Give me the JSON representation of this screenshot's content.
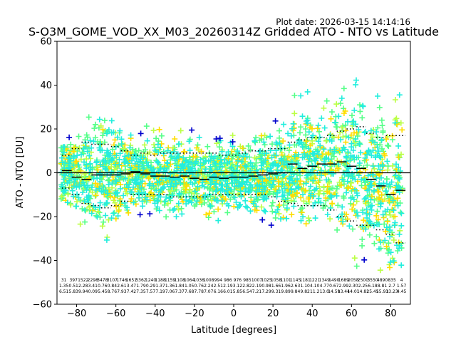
{
  "plot_date": "Plot date: 2026-03-15 14:14:16",
  "chart_data": {
    "type": "scatter",
    "title": "S-O3M_GOME_VOD_XX_M03_20260314Z Gridded ATO - NTO vs Latitude",
    "xlabel": "Latitude [degrees]",
    "ylabel": "ATO - NTO [DU]",
    "xlim": [
      -90,
      90
    ],
    "ylim": [
      -60,
      60
    ],
    "xticks": [
      -80,
      -60,
      -40,
      -20,
      0,
      20,
      40,
      60,
      80
    ],
    "yticks": [
      -60,
      -40,
      -20,
      0,
      20,
      40,
      60
    ],
    "colors": {
      "blue": "#0000cc",
      "cyan": "#22eedd",
      "green": "#55ff88",
      "yellow": "#ffdd00",
      "lime": "#bbff44",
      "black": "#000000"
    },
    "zero_line": 0,
    "bin_lats": [
      -85,
      -80,
      -75,
      -70,
      -65,
      -60,
      -55,
      -50,
      -45,
      -40,
      -35,
      -30,
      -25,
      -20,
      -15,
      -10,
      -5,
      0,
      5,
      10,
      15,
      20,
      25,
      30,
      35,
      40,
      45,
      50,
      55,
      60,
      65,
      70,
      75,
      80,
      85
    ],
    "bin_mean": [
      1,
      -2,
      -3,
      -1,
      -1,
      -1,
      -0.5,
      0.5,
      -0.5,
      -1.5,
      -1.5,
      -2,
      -1.5,
      -2.5,
      -3,
      -2,
      -2.5,
      -2,
      -2,
      -1.5,
      -1,
      -0.5,
      0,
      4,
      2,
      3,
      4,
      4,
      5,
      3,
      2,
      -3,
      -6,
      -10,
      -8
    ],
    "bin_upper": [
      8,
      11,
      14,
      13,
      13,
      12,
      10,
      8,
      9,
      8,
      9,
      9,
      9,
      9,
      9,
      9,
      8,
      8,
      9,
      10,
      10,
      11,
      11,
      14,
      15,
      16,
      16,
      17,
      19,
      20,
      21,
      18,
      16,
      17,
      17
    ],
    "bin_lower": [
      -7,
      -10,
      -14,
      -15,
      -16,
      -15,
      -13,
      -10,
      -10,
      -10,
      -10,
      -11,
      -11,
      -11,
      -11,
      -10,
      -10,
      -10,
      -10,
      -10,
      -10,
      -11,
      -13,
      -14,
      -15,
      -15,
      -15,
      -17,
      -20,
      -22,
      -24,
      -24,
      -26,
      -28,
      -32
    ],
    "counts": [
      "31",
      "397",
      "1522",
      "2298",
      "3478",
      "3107",
      "1746",
      "1651",
      "5362",
      "1240",
      "1188",
      "1159",
      "1108",
      "1064",
      "1036",
      "1008",
      "994",
      "986",
      "976",
      "985",
      "1007",
      "1025",
      "1058",
      "1101",
      "1145",
      "1181",
      "1221",
      "1349",
      "1490",
      "1689",
      "2058",
      "2500",
      "3550",
      "4890",
      "835",
      "4"
    ],
    "annot_row2": [
      "1.35",
      "0.51",
      "2.28",
      "3.41",
      "0.76",
      "0.84",
      "2.61",
      "3.47",
      "1.79",
      "0.29",
      "1.37",
      "1.36",
      "1.84",
      "1.05",
      "0.76",
      "2.24",
      "2.51",
      "2.19",
      "3.12",
      "2.82",
      "2.19",
      "0.98",
      "1.66",
      "1.96",
      "2.63",
      "1.10",
      "4.10",
      "4.77",
      "0.67",
      "2.99",
      "2.30",
      "2.25",
      "6.18",
      "8.81",
      "2.7",
      "1.57"
    ],
    "annot_row3": [
      "6.51",
      "5.83",
      "9.94",
      "0.09",
      "5.45",
      "8.76",
      "7.93",
      "7.42",
      "7.35",
      "7.57",
      "7.19",
      "7.06",
      "7.37",
      "7.68",
      "7.78",
      "7.07",
      "6.16",
      "6.01",
      "5.85",
      "6.54",
      "7.21",
      "7.29",
      "9.31",
      "9.89",
      "9.84",
      "9.82",
      "11.2",
      "13.0",
      "14.59",
      "13.44",
      "14.01",
      "14.82",
      "15.45",
      "15.93",
      "13.23",
      "4.45"
    ]
  }
}
